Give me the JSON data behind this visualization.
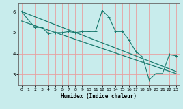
{
  "title": "",
  "xlabel": "Humidex (Indice chaleur)",
  "bg_color": "#c8ecec",
  "line_color": "#1a7a6e",
  "grid_color_v": "#e8a0a0",
  "grid_color_h": "#e8a0a0",
  "x_ticks": [
    0,
    1,
    2,
    3,
    4,
    5,
    6,
    7,
    8,
    9,
    10,
    11,
    12,
    13,
    14,
    15,
    16,
    17,
    18,
    19,
    20,
    21,
    22,
    23
  ],
  "y_ticks": [
    3,
    4,
    5,
    6
  ],
  "ylim": [
    2.5,
    6.4
  ],
  "xlim": [
    -0.5,
    23.5
  ],
  "line1_x": [
    0,
    1,
    2,
    3,
    4,
    5,
    6,
    7,
    8,
    9,
    10,
    11,
    12,
    13,
    14,
    15,
    16,
    17,
    18,
    19,
    20,
    21,
    22,
    23
  ],
  "line1_y": [
    6.0,
    5.6,
    5.25,
    5.25,
    4.95,
    5.0,
    5.0,
    5.05,
    5.0,
    5.05,
    5.05,
    5.05,
    6.05,
    5.75,
    5.05,
    5.05,
    4.65,
    4.1,
    3.85,
    2.75,
    3.05,
    3.05,
    3.95,
    3.9
  ],
  "line2_x": [
    0,
    23
  ],
  "line2_y": [
    6.0,
    3.15
  ],
  "line3_x": [
    0,
    23
  ],
  "line3_y": [
    5.55,
    3.05
  ]
}
